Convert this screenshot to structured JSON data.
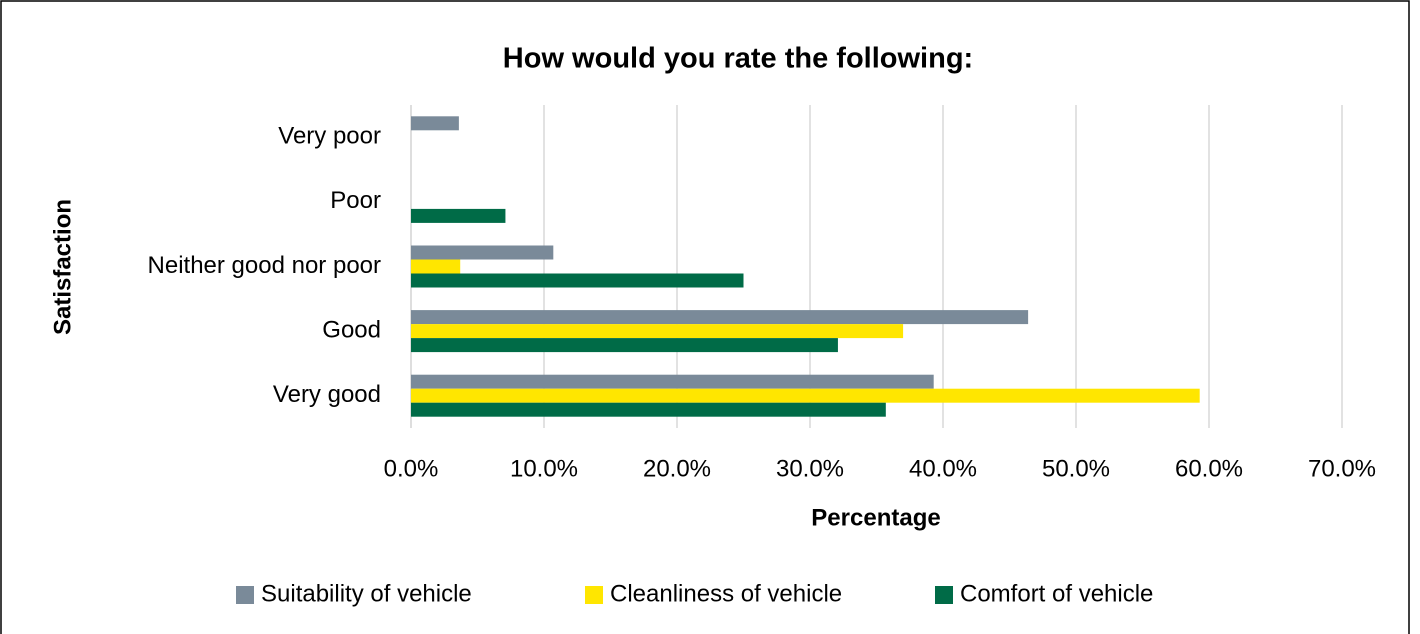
{
  "chart_data": {
    "type": "hbar",
    "title": "How would you rate the following:",
    "x_label": "Percentage",
    "y_label": "Satisfaction",
    "categories": [
      "Very poor",
      "Poor",
      "Neither good nor poor",
      "Good",
      "Very good"
    ],
    "series": [
      {
        "name": "Suitability of vehicle",
        "color": "#7a8a99",
        "values": [
          3.6,
          0,
          10.7,
          46.4,
          39.3
        ]
      },
      {
        "name": "Cleanliness of vehicle",
        "color": "#ffe600",
        "values": [
          0,
          0,
          3.7,
          37.0,
          59.3
        ]
      },
      {
        "name": "Comfort of vehicle",
        "color": "#006b47",
        "values": [
          0,
          7.1,
          25.0,
          32.1,
          35.7
        ]
      }
    ],
    "xlim": [
      0,
      70
    ],
    "xticks": [
      {
        "value": 0,
        "label": "0.0%"
      },
      {
        "value": 10,
        "label": "10.0%"
      },
      {
        "value": 20,
        "label": "20.0%"
      },
      {
        "value": 30,
        "label": "30.0%"
      },
      {
        "value": 40,
        "label": "40.0%"
      },
      {
        "value": 50,
        "label": "50.0%"
      },
      {
        "value": 60,
        "label": "60.0%"
      },
      {
        "value": 70,
        "label": "70.0%"
      }
    ],
    "grid": true,
    "legend": "bottom"
  }
}
